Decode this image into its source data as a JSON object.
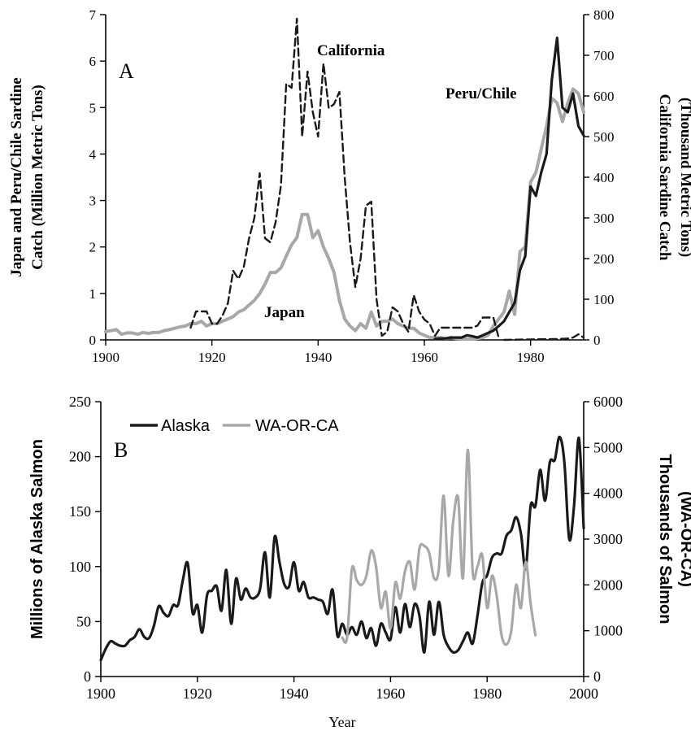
{
  "chart_data": [
    {
      "type": "line",
      "panel_label": "A",
      "xlabel": "",
      "ylabel_left": "Japan and Peru/Chile Sardine Catch (Million Metric Tons)",
      "ylabel_left_lines": [
        "Japan and Peru/Chile Sardine",
        "Catch (Million Metric Tons)"
      ],
      "ylabel_right": "California Sardine Catch (Thousand Metric Tons)",
      "ylabel_right_lines": [
        "California Sardine Catch",
        "(Thousand Metric Tons)"
      ],
      "xlim": [
        1900,
        1990
      ],
      "ylim_left": [
        0,
        7
      ],
      "ylim_right": [
        0,
        800
      ],
      "x_ticks": [
        1900,
        1920,
        1940,
        1960,
        1980
      ],
      "y_ticks_left": [
        0,
        1,
        2,
        3,
        4,
        5,
        6,
        7
      ],
      "y_ticks_right": [
        0,
        100,
        200,
        300,
        400,
        500,
        600,
        700,
        800
      ],
      "annotations": [
        "California",
        "Peru/Chile",
        "Japan"
      ],
      "series": [
        {
          "name": "Japan",
          "axis": "left",
          "color": "#a8a8a8",
          "style": "solid",
          "x": [
            1900,
            1901,
            1902,
            1903,
            1904,
            1905,
            1906,
            1907,
            1908,
            1909,
            1910,
            1911,
            1912,
            1913,
            1914,
            1915,
            1916,
            1917,
            1918,
            1919,
            1920,
            1921,
            1922,
            1923,
            1924,
            1925,
            1926,
            1927,
            1928,
            1929,
            1930,
            1931,
            1932,
            1933,
            1934,
            1935,
            1936,
            1937,
            1938,
            1939,
            1940,
            1941,
            1942,
            1943,
            1944,
            1945,
            1946,
            1947,
            1948,
            1949,
            1950,
            1951,
            1952,
            1953,
            1954,
            1955,
            1956,
            1957,
            1958,
            1959,
            1960,
            1961,
            1962,
            1963,
            1964,
            1965,
            1966,
            1967,
            1968,
            1969,
            1970,
            1971,
            1972,
            1973,
            1974,
            1975,
            1976,
            1977,
            1978,
            1979,
            1980,
            1981,
            1982,
            1983,
            1984,
            1985,
            1986,
            1987,
            1988,
            1989,
            1990
          ],
          "values": [
            0.18,
            0.2,
            0.22,
            0.12,
            0.15,
            0.15,
            0.12,
            0.16,
            0.14,
            0.16,
            0.16,
            0.2,
            0.22,
            0.25,
            0.28,
            0.3,
            0.35,
            0.35,
            0.4,
            0.3,
            0.35,
            0.35,
            0.4,
            0.45,
            0.5,
            0.6,
            0.65,
            0.75,
            0.85,
            1.0,
            1.2,
            1.45,
            1.45,
            1.55,
            1.8,
            2.05,
            2.2,
            2.7,
            2.7,
            2.2,
            2.35,
            2.0,
            1.75,
            1.45,
            0.85,
            0.45,
            0.3,
            0.2,
            0.35,
            0.25,
            0.6,
            0.3,
            0.4,
            0.4,
            0.45,
            0.35,
            0.3,
            0.25,
            0.25,
            0.15,
            0.1,
            0.05,
            0.05,
            0.05,
            0.03,
            0.05,
            0.03,
            0.02,
            0.02,
            0.02,
            0.03,
            0.05,
            0.1,
            0.3,
            0.45,
            0.6,
            1.05,
            0.55,
            1.9,
            2.0,
            3.4,
            3.6,
            4.1,
            4.6,
            5.2,
            5.1,
            4.7,
            5.1,
            5.4,
            5.3,
            4.9
          ]
        },
        {
          "name": "Peru/Chile",
          "axis": "left",
          "color": "#1a1a1a",
          "style": "solid",
          "x": [
            1962,
            1963,
            1964,
            1965,
            1966,
            1967,
            1968,
            1969,
            1970,
            1971,
            1972,
            1973,
            1974,
            1975,
            1976,
            1977,
            1978,
            1979,
            1980,
            1981,
            1982,
            1983,
            1984,
            1985,
            1986,
            1987,
            1988,
            1989,
            1990
          ],
          "values": [
            0.02,
            0.03,
            0.03,
            0.05,
            0.05,
            0.05,
            0.1,
            0.08,
            0.05,
            0.1,
            0.15,
            0.2,
            0.3,
            0.4,
            0.6,
            0.8,
            1.5,
            1.8,
            3.3,
            3.1,
            3.6,
            4.0,
            5.6,
            6.5,
            5.0,
            4.9,
            5.3,
            4.6,
            4.4
          ]
        },
        {
          "name": "California",
          "axis": "right",
          "color": "#1a1a1a",
          "style": "dashed",
          "x": [
            1916,
            1917,
            1918,
            1919,
            1920,
            1921,
            1922,
            1923,
            1924,
            1925,
            1926,
            1927,
            1928,
            1929,
            1930,
            1931,
            1932,
            1933,
            1934,
            1935,
            1936,
            1937,
            1938,
            1939,
            1940,
            1941,
            1942,
            1943,
            1944,
            1945,
            1946,
            1947,
            1948,
            1949,
            1950,
            1951,
            1952,
            1953,
            1954,
            1955,
            1956,
            1957,
            1958,
            1959,
            1960,
            1961,
            1962,
            1963,
            1964,
            1965,
            1966,
            1967,
            1968,
            1969,
            1970,
            1971,
            1972,
            1973,
            1974
          ],
          "values": [
            30,
            70,
            70,
            70,
            40,
            40,
            60,
            90,
            170,
            150,
            180,
            250,
            300,
            410,
            250,
            240,
            290,
            380,
            630,
            620,
            790,
            500,
            660,
            560,
            500,
            680,
            570,
            580,
            610,
            400,
            240,
            130,
            200,
            330,
            340,
            100,
            10,
            20,
            80,
            70,
            40,
            20,
            110,
            70,
            50,
            40,
            10,
            30,
            30,
            30,
            30,
            30,
            30,
            30,
            35,
            55,
            55,
            55,
            5
          ]
        },
        {
          "name": "",
          "axis": "left",
          "color": "#1a1a1a",
          "style": "dashed",
          "x": [
            1975,
            1980,
            1985,
            1987,
            1988,
            1989,
            1990
          ],
          "values": [
            0.0,
            0.01,
            0.02,
            0.03,
            0.05,
            0.12,
            0.05
          ]
        }
      ]
    },
    {
      "type": "line",
      "panel_label": "B",
      "xlabel": "Year",
      "ylabel_left": "Millions of Alaska Salmon",
      "ylabel_right": "Thousands of Salmon (WA-OR-CA)",
      "ylabel_right_lines": [
        "Thousands of Salmon",
        "(WA-OR-CA)"
      ],
      "xlim": [
        1900,
        2000
      ],
      "ylim_left": [
        0,
        250
      ],
      "ylim_right": [
        0,
        6000
      ],
      "x_ticks": [
        1900,
        1920,
        1940,
        1960,
        1980,
        2000
      ],
      "y_ticks_left": [
        0,
        50,
        100,
        150,
        200,
        250
      ],
      "y_ticks_right": [
        0,
        1000,
        2000,
        3000,
        4000,
        5000,
        6000
      ],
      "legend": "top-left",
      "series": [
        {
          "name": "Alaska",
          "axis": "left",
          "color": "#1a1a1a",
          "x": [
            1900,
            1901,
            1902,
            1903,
            1904,
            1905,
            1906,
            1907,
            1908,
            1909,
            1910,
            1911,
            1912,
            1913,
            1914,
            1915,
            1916,
            1917,
            1918,
            1919,
            1920,
            1921,
            1922,
            1923,
            1924,
            1925,
            1926,
            1927,
            1928,
            1929,
            1930,
            1931,
            1932,
            1933,
            1934,
            1935,
            1936,
            1937,
            1938,
            1939,
            1940,
            1941,
            1942,
            1943,
            1944,
            1945,
            1946,
            1947,
            1948,
            1949,
            1950,
            1951,
            1952,
            1953,
            1954,
            1955,
            1956,
            1957,
            1958,
            1959,
            1960,
            1961,
            1962,
            1963,
            1964,
            1965,
            1966,
            1967,
            1968,
            1969,
            1970,
            1971,
            1972,
            1973,
            1974,
            1975,
            1976,
            1977,
            1978,
            1979,
            1980,
            1981,
            1982,
            1983,
            1984,
            1985,
            1986,
            1987,
            1988,
            1989,
            1990,
            1991,
            1992,
            1993,
            1994,
            1995,
            1996,
            1997,
            1998,
            1999,
            2000
          ],
          "values": [
            15,
            25,
            32,
            30,
            28,
            28,
            33,
            36,
            43,
            36,
            35,
            46,
            64,
            58,
            55,
            65,
            65,
            88,
            103,
            58,
            65,
            40,
            74,
            78,
            82,
            60,
            97,
            48,
            89,
            70,
            80,
            72,
            72,
            80,
            113,
            72,
            127,
            104,
            84,
            82,
            104,
            78,
            86,
            72,
            72,
            70,
            68,
            57,
            79,
            37,
            48,
            38,
            45,
            38,
            50,
            35,
            44,
            28,
            48,
            40,
            34,
            63,
            40,
            66,
            45,
            66,
            55,
            22,
            68,
            38,
            68,
            38,
            27,
            22,
            24,
            32,
            40,
            30,
            55,
            85,
            92,
            108,
            112,
            112,
            128,
            133,
            145,
            130,
            98,
            155,
            155,
            188,
            160,
            195,
            197,
            218,
            195,
            125,
            155,
            217,
            135
          ]
        },
        {
          "name": "WA-OR-CA",
          "axis": "right",
          "color": "#a8a8a8",
          "x": [
            1950,
            1951,
            1952,
            1953,
            1954,
            1955,
            1956,
            1957,
            1958,
            1959,
            1960,
            1961,
            1962,
            1963,
            1964,
            1965,
            1966,
            1967,
            1968,
            1969,
            1970,
            1971,
            1972,
            1973,
            1974,
            1975,
            1976,
            1977,
            1978,
            1979,
            1980,
            1981,
            1982,
            1983,
            1984,
            1985,
            1986,
            1987,
            1988,
            1989,
            1990
          ],
          "values": [
            850,
            850,
            2350,
            2100,
            2000,
            2200,
            2750,
            2400,
            1500,
            1850,
            1050,
            2050,
            1700,
            2300,
            2500,
            1900,
            2800,
            2850,
            2700,
            2150,
            2350,
            3950,
            2200,
            3400,
            3900,
            2150,
            4950,
            2300,
            2400,
            2650,
            1500,
            2200,
            1750,
            900,
            700,
            1000,
            2000,
            1500,
            2500,
            1600,
            900
          ]
        }
      ]
    }
  ]
}
